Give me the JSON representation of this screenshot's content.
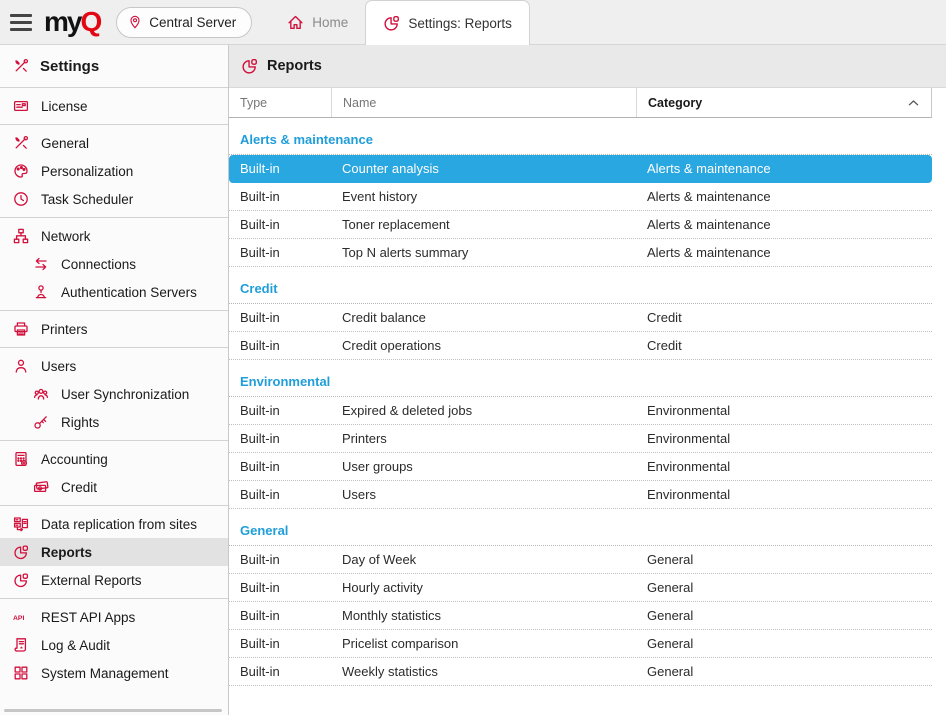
{
  "topbar": {
    "brand": {
      "part1": "my",
      "part2": "Q"
    },
    "server_button": {
      "label": "Central Server",
      "icon": "location-pin-icon"
    },
    "tabs": [
      {
        "label": "Home",
        "icon": "home-icon",
        "active": false
      },
      {
        "label": "Settings: Reports",
        "icon": "pie-chart-icon",
        "active": true
      }
    ]
  },
  "sidebar": {
    "title": "Settings",
    "title_icon": "tools-icon",
    "groups": [
      [
        {
          "label": "License",
          "icon": "license-icon"
        }
      ],
      [
        {
          "label": "General",
          "icon": "tools-icon"
        },
        {
          "label": "Personalization",
          "icon": "palette-icon"
        },
        {
          "label": "Task Scheduler",
          "icon": "clock-icon"
        }
      ],
      [
        {
          "label": "Network",
          "icon": "network-icon"
        },
        {
          "label": "Connections",
          "icon": "arrows-swap-icon",
          "indent": true
        },
        {
          "label": "Authentication Servers",
          "icon": "auth-server-icon",
          "indent": true
        }
      ],
      [
        {
          "label": "Printers",
          "icon": "printer-icon"
        }
      ],
      [
        {
          "label": "Users",
          "icon": "user-icon"
        },
        {
          "label": "User Synchronization",
          "icon": "user-group-icon",
          "indent": true
        },
        {
          "label": "Rights",
          "icon": "key-icon",
          "indent": true
        }
      ],
      [
        {
          "label": "Accounting",
          "icon": "calculator-icon"
        },
        {
          "label": "Credit",
          "icon": "banknotes-icon",
          "indent": true
        }
      ],
      [
        {
          "label": "Data replication from sites",
          "icon": "data-replication-icon"
        },
        {
          "label": "Reports",
          "icon": "pie-chart-icon",
          "selected": true
        },
        {
          "label": "External Reports",
          "icon": "pie-chart-icon"
        }
      ],
      [
        {
          "label": "REST API Apps",
          "icon": "api-icon"
        },
        {
          "label": "Log & Audit",
          "icon": "log-audit-icon"
        },
        {
          "label": "System Management",
          "icon": "grid-icon"
        }
      ]
    ]
  },
  "main": {
    "title": "Reports",
    "title_icon": "pie-chart-icon",
    "table": {
      "columns": [
        {
          "label": "Type",
          "sorted": false
        },
        {
          "label": "Name",
          "sorted": false
        },
        {
          "label": "Category",
          "sorted": "asc",
          "sort_icon": "chevron-up-icon"
        }
      ],
      "groups": [
        {
          "name": "Alerts & maintenance",
          "rows": [
            {
              "type": "Built-in",
              "name": "Counter analysis",
              "category": "Alerts & maintenance",
              "selected": true
            },
            {
              "type": "Built-in",
              "name": "Event history",
              "category": "Alerts & maintenance"
            },
            {
              "type": "Built-in",
              "name": "Toner replacement",
              "category": "Alerts & maintenance"
            },
            {
              "type": "Built-in",
              "name": "Top N alerts summary",
              "category": "Alerts & maintenance"
            }
          ]
        },
        {
          "name": "Credit",
          "rows": [
            {
              "type": "Built-in",
              "name": "Credit balance",
              "category": "Credit"
            },
            {
              "type": "Built-in",
              "name": "Credit operations",
              "category": "Credit"
            }
          ]
        },
        {
          "name": "Environmental",
          "rows": [
            {
              "type": "Built-in",
              "name": "Expired & deleted jobs",
              "category": "Environmental"
            },
            {
              "type": "Built-in",
              "name": "Printers",
              "category": "Environmental"
            },
            {
              "type": "Built-in",
              "name": "User groups",
              "category": "Environmental"
            },
            {
              "type": "Built-in",
              "name": "Users",
              "category": "Environmental"
            }
          ]
        },
        {
          "name": "General",
          "rows": [
            {
              "type": "Built-in",
              "name": "Day of Week",
              "category": "General"
            },
            {
              "type": "Built-in",
              "name": "Hourly activity",
              "category": "General"
            },
            {
              "type": "Built-in",
              "name": "Monthly statistics",
              "category": "General"
            },
            {
              "type": "Built-in",
              "name": "Pricelist comparison",
              "category": "General"
            },
            {
              "type": "Built-in",
              "name": "Weekly statistics",
              "category": "General"
            }
          ]
        }
      ]
    }
  },
  "colors": {
    "accent_red": "#d2103c",
    "accent_blue": "#29a7e0",
    "selected_row_bg": "#29a7e0",
    "selected_row_text": "#ffffff",
    "sidebar_selected_bg": "#e2e2e2",
    "group_title_text": "#1f9ed9"
  }
}
